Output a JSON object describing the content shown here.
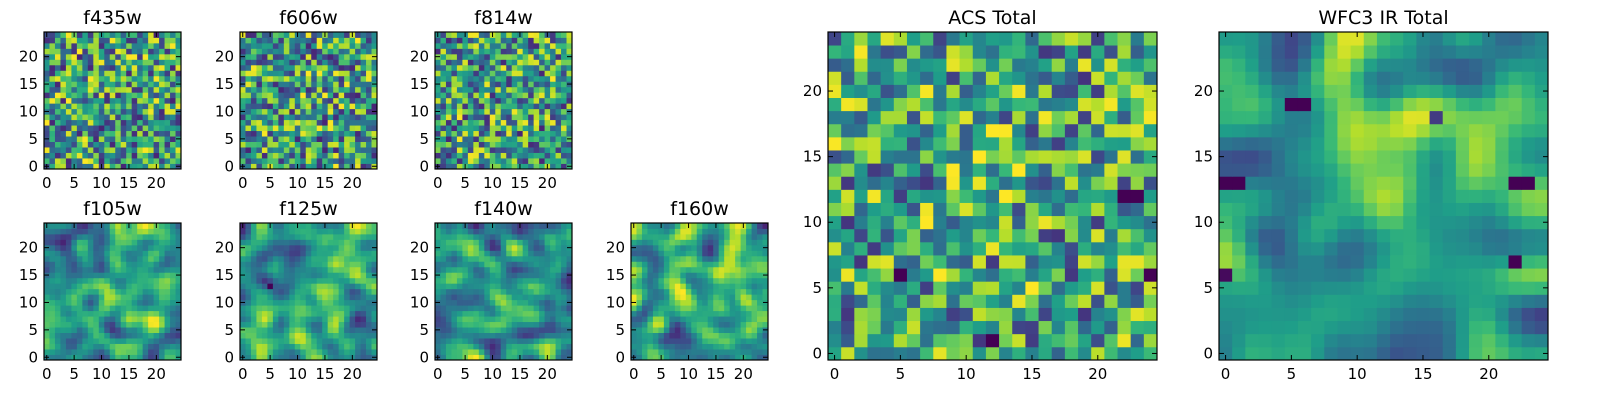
{
  "colormap": {
    "name": "viridis",
    "stops": [
      "#440154",
      "#482878",
      "#3e4989",
      "#31688e",
      "#26828e",
      "#1f9e89",
      "#35b779",
      "#6ece58",
      "#b5de2b",
      "#fde725"
    ]
  },
  "chart_data": [
    {
      "id": "f435w",
      "type": "heatmap",
      "title": "f435w",
      "grid_size": 25,
      "xlim": [
        0,
        24
      ],
      "ylim": [
        0,
        24
      ],
      "xticks": [
        0,
        5,
        10,
        15,
        20
      ],
      "yticks": [
        0,
        5,
        10,
        15,
        20
      ],
      "texture": "noise",
      "smoothing": 0,
      "value_range": [
        0.1,
        1.0
      ],
      "hot_spots": [],
      "cold_spots": [],
      "grid": false
    },
    {
      "id": "f606w",
      "type": "heatmap",
      "title": "f606w",
      "grid_size": 25,
      "xlim": [
        0,
        24
      ],
      "ylim": [
        0,
        24
      ],
      "xticks": [
        0,
        5,
        10,
        15,
        20
      ],
      "yticks": [
        0,
        5,
        10,
        15,
        20
      ],
      "texture": "noise",
      "smoothing": 0,
      "value_range": [
        0.1,
        1.0
      ],
      "hot_spots": [],
      "cold_spots": [],
      "grid": false
    },
    {
      "id": "f814w",
      "type": "heatmap",
      "title": "f814w",
      "grid_size": 25,
      "xlim": [
        0,
        24
      ],
      "ylim": [
        0,
        24
      ],
      "xticks": [
        0,
        5,
        10,
        15,
        20
      ],
      "yticks": [
        0,
        5,
        10,
        15,
        20
      ],
      "texture": "noise",
      "smoothing": 0,
      "value_range": [
        0.1,
        1.0
      ],
      "hot_spots": [],
      "cold_spots": [],
      "grid": false
    },
    {
      "id": "f105w",
      "type": "heatmap",
      "title": "f105w",
      "grid_size": 25,
      "xlim": [
        0,
        24
      ],
      "ylim": [
        0,
        24
      ],
      "xticks": [
        0,
        5,
        10,
        15,
        20
      ],
      "yticks": [
        0,
        5,
        10,
        15,
        20
      ],
      "texture": "smooth",
      "smoothing": 1,
      "value_range": [
        0.1,
        1.0
      ],
      "hot_spots": [
        {
          "x": 12,
          "y": 11,
          "amp": 0.25
        }
      ],
      "cold_spots": [],
      "grid": false
    },
    {
      "id": "f125w",
      "type": "heatmap",
      "title": "f125w",
      "grid_size": 25,
      "xlim": [
        0,
        24
      ],
      "ylim": [
        0,
        24
      ],
      "xticks": [
        0,
        5,
        10,
        15,
        20
      ],
      "yticks": [
        0,
        5,
        10,
        15,
        20
      ],
      "texture": "smooth",
      "smoothing": 1,
      "value_range": [
        0.1,
        1.0
      ],
      "hot_spots": [],
      "cold_spots": [
        {
          "x": 5,
          "y": 13,
          "amp": 0.6
        }
      ],
      "grid": false
    },
    {
      "id": "f140w",
      "type": "heatmap",
      "title": "f140w",
      "grid_size": 25,
      "xlim": [
        0,
        24
      ],
      "ylim": [
        0,
        24
      ],
      "xticks": [
        0,
        5,
        10,
        15,
        20
      ],
      "yticks": [
        0,
        5,
        10,
        15,
        20
      ],
      "texture": "smooth",
      "smoothing": 1,
      "value_range": [
        0.1,
        1.0
      ],
      "hot_spots": [
        {
          "x": 12,
          "y": 11,
          "amp": 0.2
        }
      ],
      "cold_spots": [],
      "grid": false
    },
    {
      "id": "f160w",
      "type": "heatmap",
      "title": "f160w",
      "grid_size": 25,
      "xlim": [
        0,
        24
      ],
      "ylim": [
        0,
        24
      ],
      "xticks": [
        0,
        5,
        10,
        15,
        20
      ],
      "yticks": [
        0,
        5,
        10,
        15,
        20
      ],
      "texture": "smooth",
      "smoothing": 1,
      "value_range": [
        0.1,
        1.0
      ],
      "hot_spots": [],
      "cold_spots": [],
      "grid": false
    },
    {
      "id": "acs-total",
      "type": "heatmap",
      "title": "ACS Total",
      "grid_size": 25,
      "xlim": [
        0,
        24
      ],
      "ylim": [
        0,
        24
      ],
      "xticks": [
        0,
        5,
        10,
        15,
        20
      ],
      "yticks": [
        0,
        5,
        10,
        15,
        20
      ],
      "texture": "noise",
      "smoothing": 0,
      "value_range": [
        0.15,
        1.0
      ],
      "hot_spots": [
        {
          "x": 12,
          "y": 14,
          "amp": 0.2
        }
      ],
      "cold_spots": [
        {
          "x": 22,
          "y": 12,
          "amp": 0.8
        },
        {
          "x": 23,
          "y": 12,
          "amp": 0.8
        },
        {
          "x": 5,
          "y": 6,
          "amp": 0.7
        },
        {
          "x": 24,
          "y": 6,
          "amp": 0.7
        },
        {
          "x": 12,
          "y": 1,
          "amp": 0.7
        }
      ],
      "grid": false
    },
    {
      "id": "wfc3-ir-total",
      "type": "heatmap",
      "title": "WFC3 IR Total",
      "grid_size": 25,
      "xlim": [
        0,
        24
      ],
      "ylim": [
        0,
        24
      ],
      "xticks": [
        0,
        5,
        10,
        15,
        20
      ],
      "yticks": [
        0,
        5,
        10,
        15,
        20
      ],
      "texture": "smooth",
      "smoothing": 2,
      "value_range": [
        0.2,
        0.95
      ],
      "hot_spots": [
        {
          "x": 12,
          "y": 12,
          "amp": 0.35
        }
      ],
      "cold_spots": [
        {
          "x": 5,
          "y": 19,
          "amp": 0.8
        },
        {
          "x": 6,
          "y": 19,
          "amp": 0.8
        },
        {
          "x": 0,
          "y": 13,
          "amp": 0.8
        },
        {
          "x": 1,
          "y": 13,
          "amp": 0.8
        },
        {
          "x": 22,
          "y": 13,
          "amp": 0.8
        },
        {
          "x": 23,
          "y": 13,
          "amp": 0.8
        },
        {
          "x": 16,
          "y": 18,
          "amp": 0.7
        },
        {
          "x": 22,
          "y": 7,
          "amp": 0.7
        },
        {
          "x": 0,
          "y": 6,
          "amp": 0.7
        }
      ],
      "grid": false
    }
  ]
}
